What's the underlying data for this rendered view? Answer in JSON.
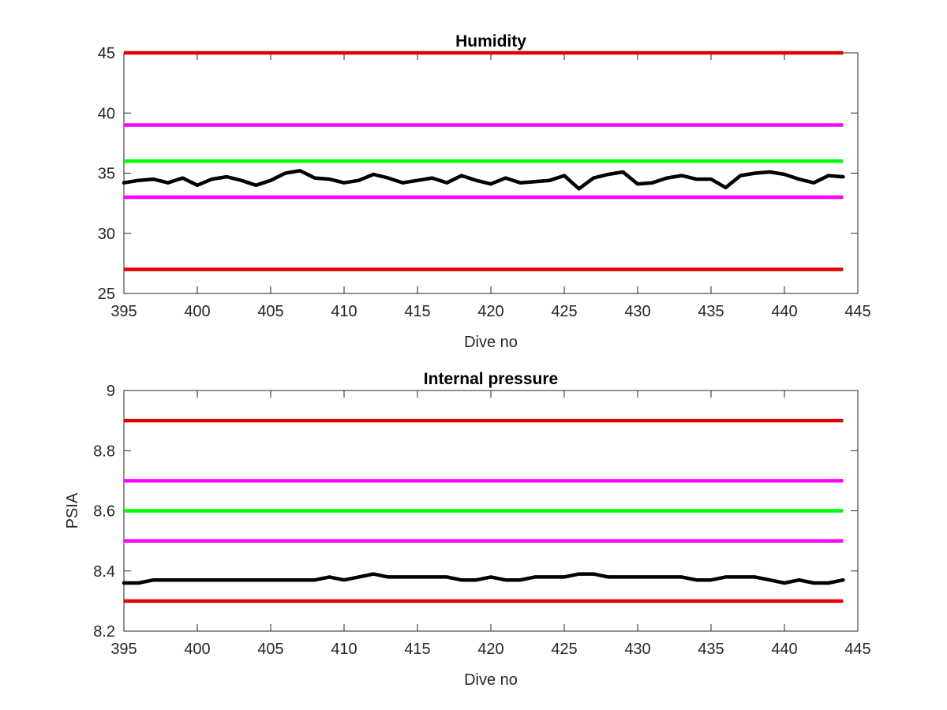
{
  "chart_data": [
    {
      "type": "line",
      "title": "Humidity",
      "xlabel": "Dive no",
      "ylabel": "",
      "xlim": [
        395,
        445
      ],
      "ylim": [
        25,
        45
      ],
      "xticks": [
        "395",
        "400",
        "405",
        "410",
        "415",
        "420",
        "425",
        "430",
        "435",
        "440",
        "445"
      ],
      "yticks": [
        "25",
        "30",
        "35",
        "40",
        "45"
      ],
      "grid": false,
      "reference_lines": [
        {
          "y": 45,
          "color": "#e00000"
        },
        {
          "y": 39,
          "color": "#ff00ff"
        },
        {
          "y": 36,
          "color": "#00ff00"
        },
        {
          "y": 33,
          "color": "#ff00ff"
        },
        {
          "y": 27,
          "color": "#e00000"
        }
      ],
      "series": [
        {
          "color": "#000000",
          "x": [
            395,
            396,
            397,
            398,
            399,
            400,
            401,
            402,
            403,
            404,
            405,
            406,
            407,
            408,
            409,
            410,
            411,
            412,
            413,
            414,
            415,
            416,
            417,
            418,
            419,
            420,
            421,
            422,
            423,
            424,
            425,
            426,
            427,
            428,
            429,
            430,
            431,
            432,
            433,
            434,
            435,
            436,
            437,
            438,
            439,
            440,
            441,
            442,
            443,
            444
          ],
          "y": [
            34.2,
            34.4,
            34.5,
            34.2,
            34.6,
            34.0,
            34.5,
            34.7,
            34.4,
            34.0,
            34.4,
            35.0,
            35.2,
            34.6,
            34.5,
            34.2,
            34.4,
            34.9,
            34.6,
            34.2,
            34.4,
            34.6,
            34.2,
            34.8,
            34.4,
            34.1,
            34.6,
            34.2,
            34.3,
            34.4,
            34.8,
            33.7,
            34.6,
            34.9,
            35.1,
            34.1,
            34.2,
            34.6,
            34.8,
            34.5,
            34.5,
            33.8,
            34.8,
            35.0,
            35.1,
            34.9,
            34.5,
            34.2,
            34.8,
            34.7
          ]
        }
      ]
    },
    {
      "type": "line",
      "title": "Internal pressure",
      "xlabel": "Dive no",
      "ylabel": "PSIA",
      "xlim": [
        395,
        445
      ],
      "ylim": [
        8.2,
        9
      ],
      "xticks": [
        "395",
        "400",
        "405",
        "410",
        "415",
        "420",
        "425",
        "430",
        "435",
        "440",
        "445"
      ],
      "yticks": [
        "8.2",
        "8.4",
        "8.6",
        "8.8",
        "9"
      ],
      "grid": false,
      "reference_lines": [
        {
          "y": 8.9,
          "color": "#e00000"
        },
        {
          "y": 8.7,
          "color": "#ff00ff"
        },
        {
          "y": 8.6,
          "color": "#00ff00"
        },
        {
          "y": 8.5,
          "color": "#ff00ff"
        },
        {
          "y": 8.3,
          "color": "#e00000"
        }
      ],
      "series": [
        {
          "color": "#000000",
          "x": [
            395,
            396,
            397,
            398,
            399,
            400,
            401,
            402,
            403,
            404,
            405,
            406,
            407,
            408,
            409,
            410,
            411,
            412,
            413,
            414,
            415,
            416,
            417,
            418,
            419,
            420,
            421,
            422,
            423,
            424,
            425,
            426,
            427,
            428,
            429,
            430,
            431,
            432,
            433,
            434,
            435,
            436,
            437,
            438,
            439,
            440,
            441,
            442,
            443,
            444
          ],
          "y": [
            8.36,
            8.36,
            8.37,
            8.37,
            8.37,
            8.37,
            8.37,
            8.37,
            8.37,
            8.37,
            8.37,
            8.37,
            8.37,
            8.37,
            8.38,
            8.37,
            8.38,
            8.39,
            8.38,
            8.38,
            8.38,
            8.38,
            8.38,
            8.37,
            8.37,
            8.38,
            8.37,
            8.37,
            8.38,
            8.38,
            8.38,
            8.39,
            8.39,
            8.38,
            8.38,
            8.38,
            8.38,
            8.38,
            8.38,
            8.37,
            8.37,
            8.38,
            8.38,
            8.38,
            8.37,
            8.36,
            8.37,
            8.36,
            8.36,
            8.37
          ]
        }
      ]
    }
  ]
}
